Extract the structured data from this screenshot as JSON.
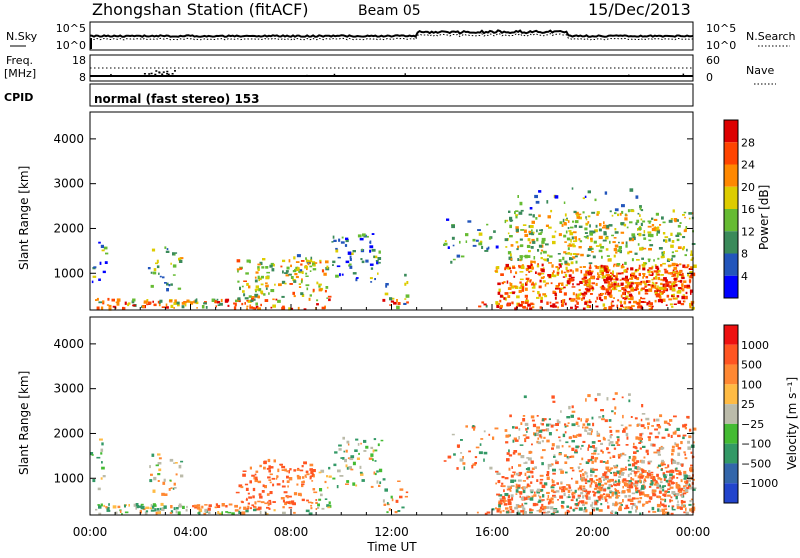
{
  "header": {
    "station": "Zhongshan Station (fitACF)",
    "beam": "Beam 05",
    "date": "15/Dec/2013"
  },
  "top_panels": {
    "nsky_label": "N.Sky",
    "nsky_ticks": [
      "10^5",
      "10^0"
    ],
    "nsky_right_ticks": [
      "10^5",
      "10^0"
    ],
    "nsearch_label": "N.Search",
    "freq_label_line1": "Freq.",
    "freq_label_line2": "[MHz]",
    "freq_ticks": [
      "18",
      "8"
    ],
    "nave_ticks": [
      "60",
      "0"
    ],
    "nave_label": "Nave",
    "cpid_label": "CPID",
    "cpid_text": "normal (fast stereo) 153"
  },
  "chart_data": [
    {
      "type": "heatmap",
      "panel": "power",
      "ylabel": "Slant Range [km]",
      "y_ticks": [
        "1000",
        "2000",
        "3000",
        "4000"
      ],
      "ylim": [
        180,
        4600
      ],
      "xlim": [
        0,
        24
      ],
      "colorbar_label": "Power [dB]",
      "colorbar_ticks": [
        "4",
        "8",
        "12",
        "16",
        "20",
        "24",
        "28"
      ],
      "colors": [
        "#0000ff",
        "#2255bb",
        "#3a8a5a",
        "#66bb33",
        "#ddcc00",
        "#ff8800",
        "#ff4400",
        "#dd0000"
      ]
    },
    {
      "type": "heatmap",
      "panel": "velocity",
      "ylabel": "Slant Range [km]",
      "y_ticks": [
        "1000",
        "2000",
        "3000",
        "4000"
      ],
      "ylim": [
        180,
        4600
      ],
      "xlim": [
        0,
        24
      ],
      "colorbar_label": "Velocity [m s⁻¹]",
      "colorbar_ticks": [
        "1000",
        "500",
        "100",
        "25",
        "−25",
        "−100",
        "−500",
        "−1000"
      ],
      "colors": [
        "#2244cc",
        "#3366aa",
        "#339966",
        "#44bb33",
        "#bbbbaa",
        "#ffbb44",
        "#ff8833",
        "#ff5522",
        "#ee1111"
      ]
    }
  ],
  "x_axis": {
    "ticks": [
      "00:00",
      "04:00",
      "08:00",
      "12:00",
      "16:00",
      "20:00",
      "00:00"
    ],
    "label": "Time UT"
  }
}
